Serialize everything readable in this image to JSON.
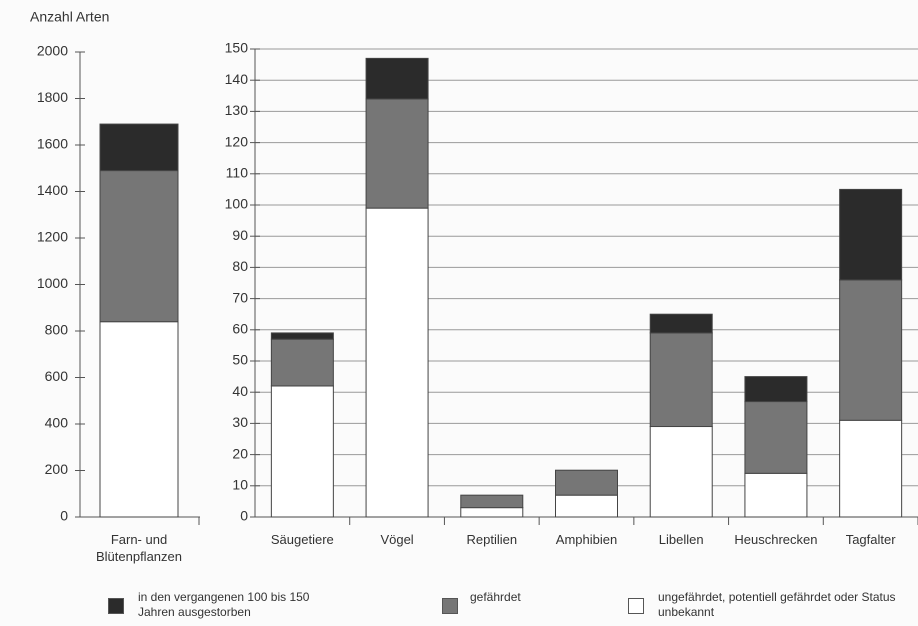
{
  "chart_data": [
    {
      "type": "bar",
      "stacked": true,
      "y_label": "Anzahl Arten",
      "categories": [
        "Farn- und Blütenpflanzen"
      ],
      "series": [
        {
          "name": "ungefährdet, potentiell gefährdet oder Status unbekannt",
          "color": "#ffffff",
          "values": [
            840
          ]
        },
        {
          "name": "gefährdet",
          "color": "#767676",
          "values": [
            650
          ]
        },
        {
          "name": "in den vergangenen 100 bis 150 Jahren ausgestorben",
          "color": "#2b2b2b",
          "values": [
            200
          ]
        }
      ],
      "ylim": [
        0,
        2000
      ],
      "yticks": [
        0,
        200,
        400,
        600,
        800,
        1000,
        1200,
        1400,
        1600,
        1800,
        2000
      ],
      "grid": false
    },
    {
      "type": "bar",
      "stacked": true,
      "categories": [
        "Säugetiere",
        "Vögel",
        "Reptilien",
        "Amphibien",
        "Libellen",
        "Heuschrecken",
        "Tagfalter"
      ],
      "series": [
        {
          "color": "#ffffff",
          "values": [
            42,
            99,
            3,
            7,
            29,
            14,
            31
          ]
        },
        {
          "color": "#767676",
          "values": [
            15,
            35,
            4,
            8,
            30,
            23,
            45
          ]
        },
        {
          "color": "#2b2b2b",
          "values": [
            2,
            13,
            0,
            0,
            6,
            8,
            29
          ]
        }
      ],
      "ylim": [
        0,
        150
      ],
      "yticks": [
        0,
        10,
        20,
        30,
        40,
        50,
        60,
        70,
        80,
        90,
        100,
        110,
        120,
        130,
        140,
        150
      ],
      "grid": true
    }
  ]
}
